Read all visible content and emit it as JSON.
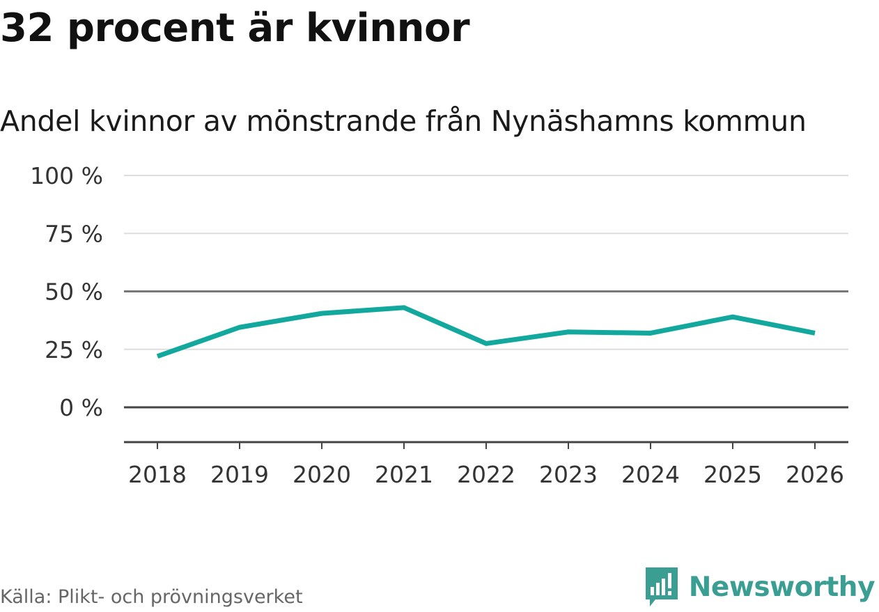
{
  "header": {
    "title": "32 procent är kvinnor",
    "subtitle": "Andel kvinnor av mönstrande från Nynäshamns kommun"
  },
  "chart_data": {
    "type": "line",
    "title": "32 procent är kvinnor",
    "subtitle": "Andel kvinnor av mönstrande från Nynäshamns kommun",
    "xlabel": "",
    "ylabel": "",
    "x": [
      "2018",
      "2019",
      "2020",
      "2021",
      "2022",
      "2023",
      "2024",
      "2025",
      "2026"
    ],
    "series": [
      {
        "name": "Andel kvinnor",
        "values": [
          22,
          34.5,
          40.5,
          43,
          27.5,
          32.5,
          32,
          39,
          32
        ],
        "color": "#13a89e"
      }
    ],
    "ylim": [
      -15,
      100
    ],
    "yticks": [
      0,
      25,
      50,
      75,
      100
    ],
    "ytick_labels": [
      "0 %",
      "25 %",
      "50 %",
      "75 %",
      "100 %"
    ],
    "grid": true
  },
  "footer": {
    "source": "Källa: Plikt- och prövningsverket",
    "logo_text": "Newsworthy"
  },
  "colors": {
    "line": "#13a89e",
    "brand": "#3a9e92",
    "grid": "#dddddd",
    "axis": "#444444"
  }
}
